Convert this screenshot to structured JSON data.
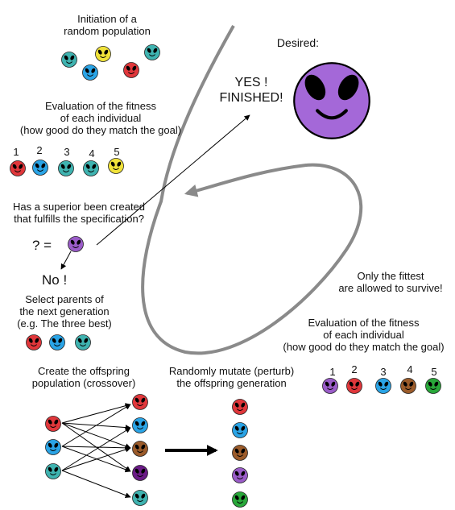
{
  "colors": {
    "red": "#e0373b",
    "blue": "#2aa4e6",
    "teal": "#3fb3b0",
    "yellow": "#f0e23a",
    "purple": "#9a5cc8",
    "brown": "#9b5b2a",
    "green": "#29a83a",
    "darkpurple": "#6a1a86",
    "desired": "#a468d8",
    "curve": "#8a8a8a"
  },
  "texts": {
    "init_line1": "Initiation of a",
    "init_line2": "random population",
    "eval1_line1": "Evaluation of the fitness",
    "eval1_line2": "of each individual",
    "eval1_line3": "(how good do they match the goal)",
    "superior_line1": "Has a superior been created",
    "superior_line2": "that fulfills the specification?",
    "question": "? =",
    "no": "No !",
    "select_line1": "Select parents of",
    "select_line2": "the next generation",
    "select_line3": "(e.g. The three best)",
    "offspring_line1": "Create the offspring",
    "offspring_line2": "population (crossover)",
    "mutate_line1": "Randomly mutate (perturb)",
    "mutate_line2": "the offspring generation",
    "desired": "Desired:",
    "yes_line1": "YES !",
    "yes_line2": "FINISHED!",
    "fittest_line1": "Only the fittest",
    "fittest_line2": "are allowed to survive!",
    "eval2_line1": "Evaluation of the fitness",
    "eval2_line2": "of each individual",
    "eval2_line3": "(how good do they match the goal)"
  },
  "rank_numbers_left": [
    "1",
    "2",
    "3",
    "4",
    "5"
  ],
  "rank_numbers_right": [
    "1",
    "2",
    "3",
    "4",
    "5"
  ],
  "populations": {
    "initial": [
      "teal",
      "yellow",
      "teal",
      "blue",
      "red"
    ],
    "evaluated_left": [
      "red",
      "blue",
      "teal",
      "teal",
      "yellow"
    ],
    "candidate": [
      "purple"
    ],
    "parents": [
      "red",
      "blue",
      "teal"
    ],
    "crossover_parents": [
      "red",
      "blue",
      "teal"
    ],
    "crossover_children": [
      "red",
      "blue",
      "brown",
      "darkpurple",
      "teal"
    ],
    "mutated": [
      "red",
      "blue",
      "brown",
      "purple",
      "green"
    ],
    "evaluated_right": [
      "purple",
      "red",
      "blue",
      "brown",
      "green"
    ]
  }
}
